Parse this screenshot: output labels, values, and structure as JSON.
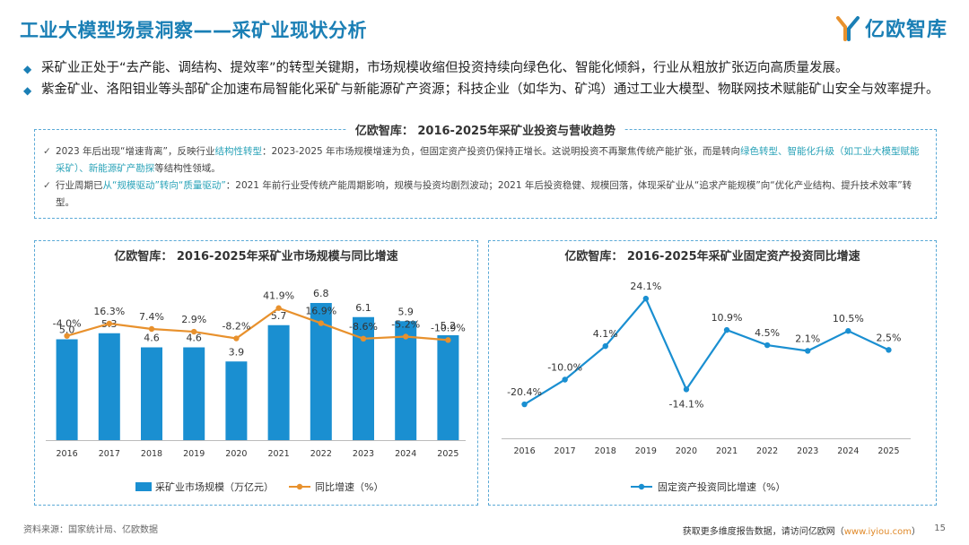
{
  "page": {
    "title": "工业大模型场景洞察——采矿业现状分析",
    "logo_text": "亿欧智库",
    "page_number": "15"
  },
  "bullets": [
    "采矿业正处于“去产能、调结构、提效率”的转型关键期，市场规模收缩但投资持续向绿色化、智能化倾斜，行业从粗放扩张迈向高质量发展。",
    "紫金矿业、洛阳钼业等头部矿企加速布局智能化采矿与新能源矿产资源；科技企业（如华为、矿鸿）通过工业大模型、物联网技术赋能矿山安全与效率提升。"
  ],
  "trend_box": {
    "title": "亿欧智库：  2016-2025年采矿业投资与营收趋势",
    "note1_a": "2023 年后出现“增速背离”，反映行业",
    "note1_hl1": "结构性转型",
    "note1_b": "：2023-2025 年市场规模增速为负，但固定资产投资仍保持正增长。这说明投资不再聚焦传统产能扩张，而是转向",
    "note1_hl2": "绿色转型、智能化升级",
    "note1_c": "（如工业大模型赋能采矿）、新能源矿产勘探",
    "note1_d": "等结构性领域。",
    "note2_a": "行业周期已",
    "note2_hl": "从“规模驱动”转向“质量驱动”",
    "note2_b": "：2021 年前行业受传统产能周期影响，规模与投资均剧烈波动；2021 年后投资稳健、规模回落，体现采矿业从“追求产能规模”向“优化产业结构、提升技术效率”转型。"
  },
  "chart_data": [
    {
      "type": "bar",
      "title": "亿欧智库：  2016-2025年采矿业市场规模与同比增速",
      "categories": [
        "2016",
        "2017",
        "2018",
        "2019",
        "2020",
        "2021",
        "2022",
        "2023",
        "2024",
        "2025"
      ],
      "series": [
        {
          "name": "采矿业市场规模（万亿元）",
          "type": "bar",
          "values": [
            5.0,
            5.3,
            4.6,
            4.6,
            3.9,
            5.7,
            6.8,
            6.1,
            5.9,
            5.2
          ],
          "labels": [
            "5.0",
            "5.3",
            "4.6",
            "4.6",
            "3.9",
            "5.7",
            "6.8",
            "6.1",
            "5.9",
            "5.2"
          ],
          "color": "#1a8fd1"
        },
        {
          "name": "同比增速（%）",
          "type": "line",
          "values": [
            -4.0,
            16.3,
            7.4,
            2.9,
            -8.2,
            41.9,
            16.9,
            -8.6,
            -5.2,
            -10.9
          ],
          "labels": [
            "-4.0%",
            "16.3%",
            "7.4%",
            "2.9%",
            "-8.2%",
            "41.9%",
            "16.9%",
            "-8.6%",
            "-5.2%",
            "-10.9%"
          ],
          "color": "#e8912d"
        }
      ],
      "ylim_bar": [
        0,
        9
      ],
      "ylim_line": [
        -60,
        60
      ],
      "legend": "bottom"
    },
    {
      "type": "line",
      "title": "亿欧智库：  2016-2025年采矿业固定资产投资同比增速",
      "categories": [
        "2016",
        "2017",
        "2018",
        "2019",
        "2020",
        "2021",
        "2022",
        "2023",
        "2024",
        "2025"
      ],
      "series": [
        {
          "name": "固定资产投资同比增速（%）",
          "values": [
            -20.4,
            -10.0,
            4.1,
            24.1,
            -14.1,
            10.9,
            4.5,
            2.1,
            10.5,
            2.5
          ],
          "labels": [
            "-20.4%",
            "-10.0%",
            "4.1%",
            "24.1%",
            "-14.1%",
            "10.9%",
            "4.5%",
            "2.1%",
            "10.5%",
            "2.5%"
          ],
          "color": "#1a8fd1"
        }
      ],
      "ylim": [
        -25,
        30
      ],
      "legend": "bottom"
    }
  ],
  "footer": {
    "source": "资料来源：国家统计局、亿欧数据",
    "more_text": "获取更多维度报告数据，请访问亿欧网（",
    "link": "www.iyiou.com",
    "more_end": "）"
  }
}
